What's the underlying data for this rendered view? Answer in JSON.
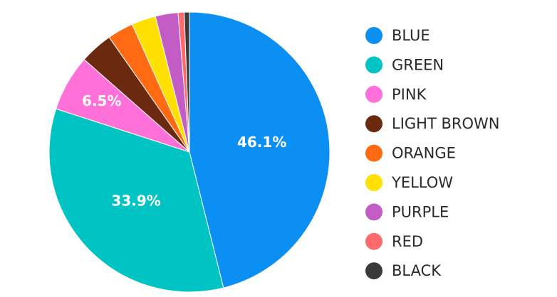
{
  "chart_data": {
    "type": "pie",
    "categories": [
      "BLUE",
      "GREEN",
      "PINK",
      "LIGHT BROWN",
      "ORANGE",
      "YELLOW",
      "PURPLE",
      "RED",
      "BLACK"
    ],
    "values": [
      46.1,
      33.9,
      6.5,
      3.8,
      3.0,
      2.8,
      2.6,
      0.7,
      0.6
    ],
    "value_labels": [
      "46.1%",
      "33.9%",
      "6.5%",
      null,
      null,
      null,
      null,
      null,
      null
    ],
    "colors": [
      "#0b8ff2",
      "#00c4c4",
      "#ff70d8",
      "#6b2a10",
      "#ff6a13",
      "#ffe000",
      "#c35cc4",
      "#ff6b6b",
      "#3a3a3a"
    ],
    "legend": "right"
  }
}
